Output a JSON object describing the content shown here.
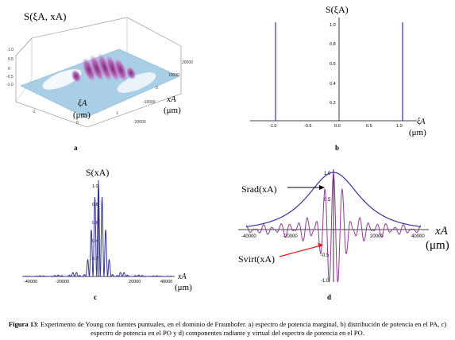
{
  "figure": {
    "caption": {
      "label": "Figura 13",
      "text": ": Experimento de Young con fuentes puntuales, en el dominio de Fraunhofer. a) espectro de potencia marginal, b) distribución de potencia en el PA, c) espectro de potencia en el PO y d) componentes radiante y virtual del espectro de potencia en el PO."
    },
    "panels": {
      "a": {
        "letter": "a",
        "title": "S(ξA, xA)",
        "axis_x": "ξA",
        "axis_x_unit": "(μm)",
        "axis_y": "xA",
        "axis_y_unit": "(μm)",
        "z_ticks": [
          "1.0",
          "0.5",
          "0",
          "-0.5",
          "-1.0"
        ],
        "xi_ticks": [
          "-1",
          "0",
          "1"
        ],
        "x_ticks": [
          "20000",
          "10000",
          "0",
          "-10000",
          "-20000"
        ]
      },
      "b": {
        "letter": "b",
        "title": "S(ξA)",
        "axis_x": "ξA",
        "axis_x_unit": "(μm)",
        "x_ticks": [
          "-1.0",
          "-0.5",
          "0.0",
          "0.5",
          "1.0"
        ],
        "y_ticks": [
          "1.0",
          "0.8",
          "0.6",
          "0.4",
          "0.2"
        ]
      },
      "c": {
        "letter": "c",
        "title": "S(xA)",
        "axis_x": "xA",
        "axis_x_unit": "(μm)",
        "x_ticks": [
          "-40000",
          "-20000",
          "20000",
          "40000"
        ],
        "y_ticks": [
          "1.0",
          "0.8",
          "0.6",
          "0.4",
          "0.2"
        ]
      },
      "d": {
        "letter": "d",
        "label_rad": "Srad(xA)",
        "label_virt": "Svirt(xA)",
        "axis_x": "xA",
        "axis_x_unit": "(μm)",
        "x_ticks": [
          "-40000",
          "-20000",
          "20000",
          "40000"
        ],
        "y_ticks": [
          "1.0",
          "0.5",
          "-0.5",
          "-1.0"
        ]
      }
    }
  },
  "chart_data": [
    {
      "type": "line",
      "panel": "b",
      "title": "S(ξA)",
      "xlabel": "ξA (μm)",
      "xlim": [
        -1.1,
        1.1
      ],
      "ylim": [
        0,
        1.0
      ],
      "series": [
        {
          "x": [
            -1.0,
            1.0
          ],
          "values": [
            1.0,
            1.0
          ]
        }
      ]
    },
    {
      "type": "line",
      "panel": "c",
      "title": "S(xA)",
      "xlabel": "xA (μm)",
      "xlim": [
        -40000,
        40000
      ],
      "ylim": [
        0,
        1.0
      ]
    },
    {
      "type": "line",
      "panel": "d",
      "xlabel": "xA (μm)",
      "xlim": [
        -40000,
        40000
      ],
      "ylim": [
        -1.0,
        1.0
      ]
    }
  ],
  "colors": {
    "curve": "#333399",
    "virtual": "#8e3c93",
    "arrow_red": "#e01b1b",
    "surface": "#a9cfe6"
  }
}
